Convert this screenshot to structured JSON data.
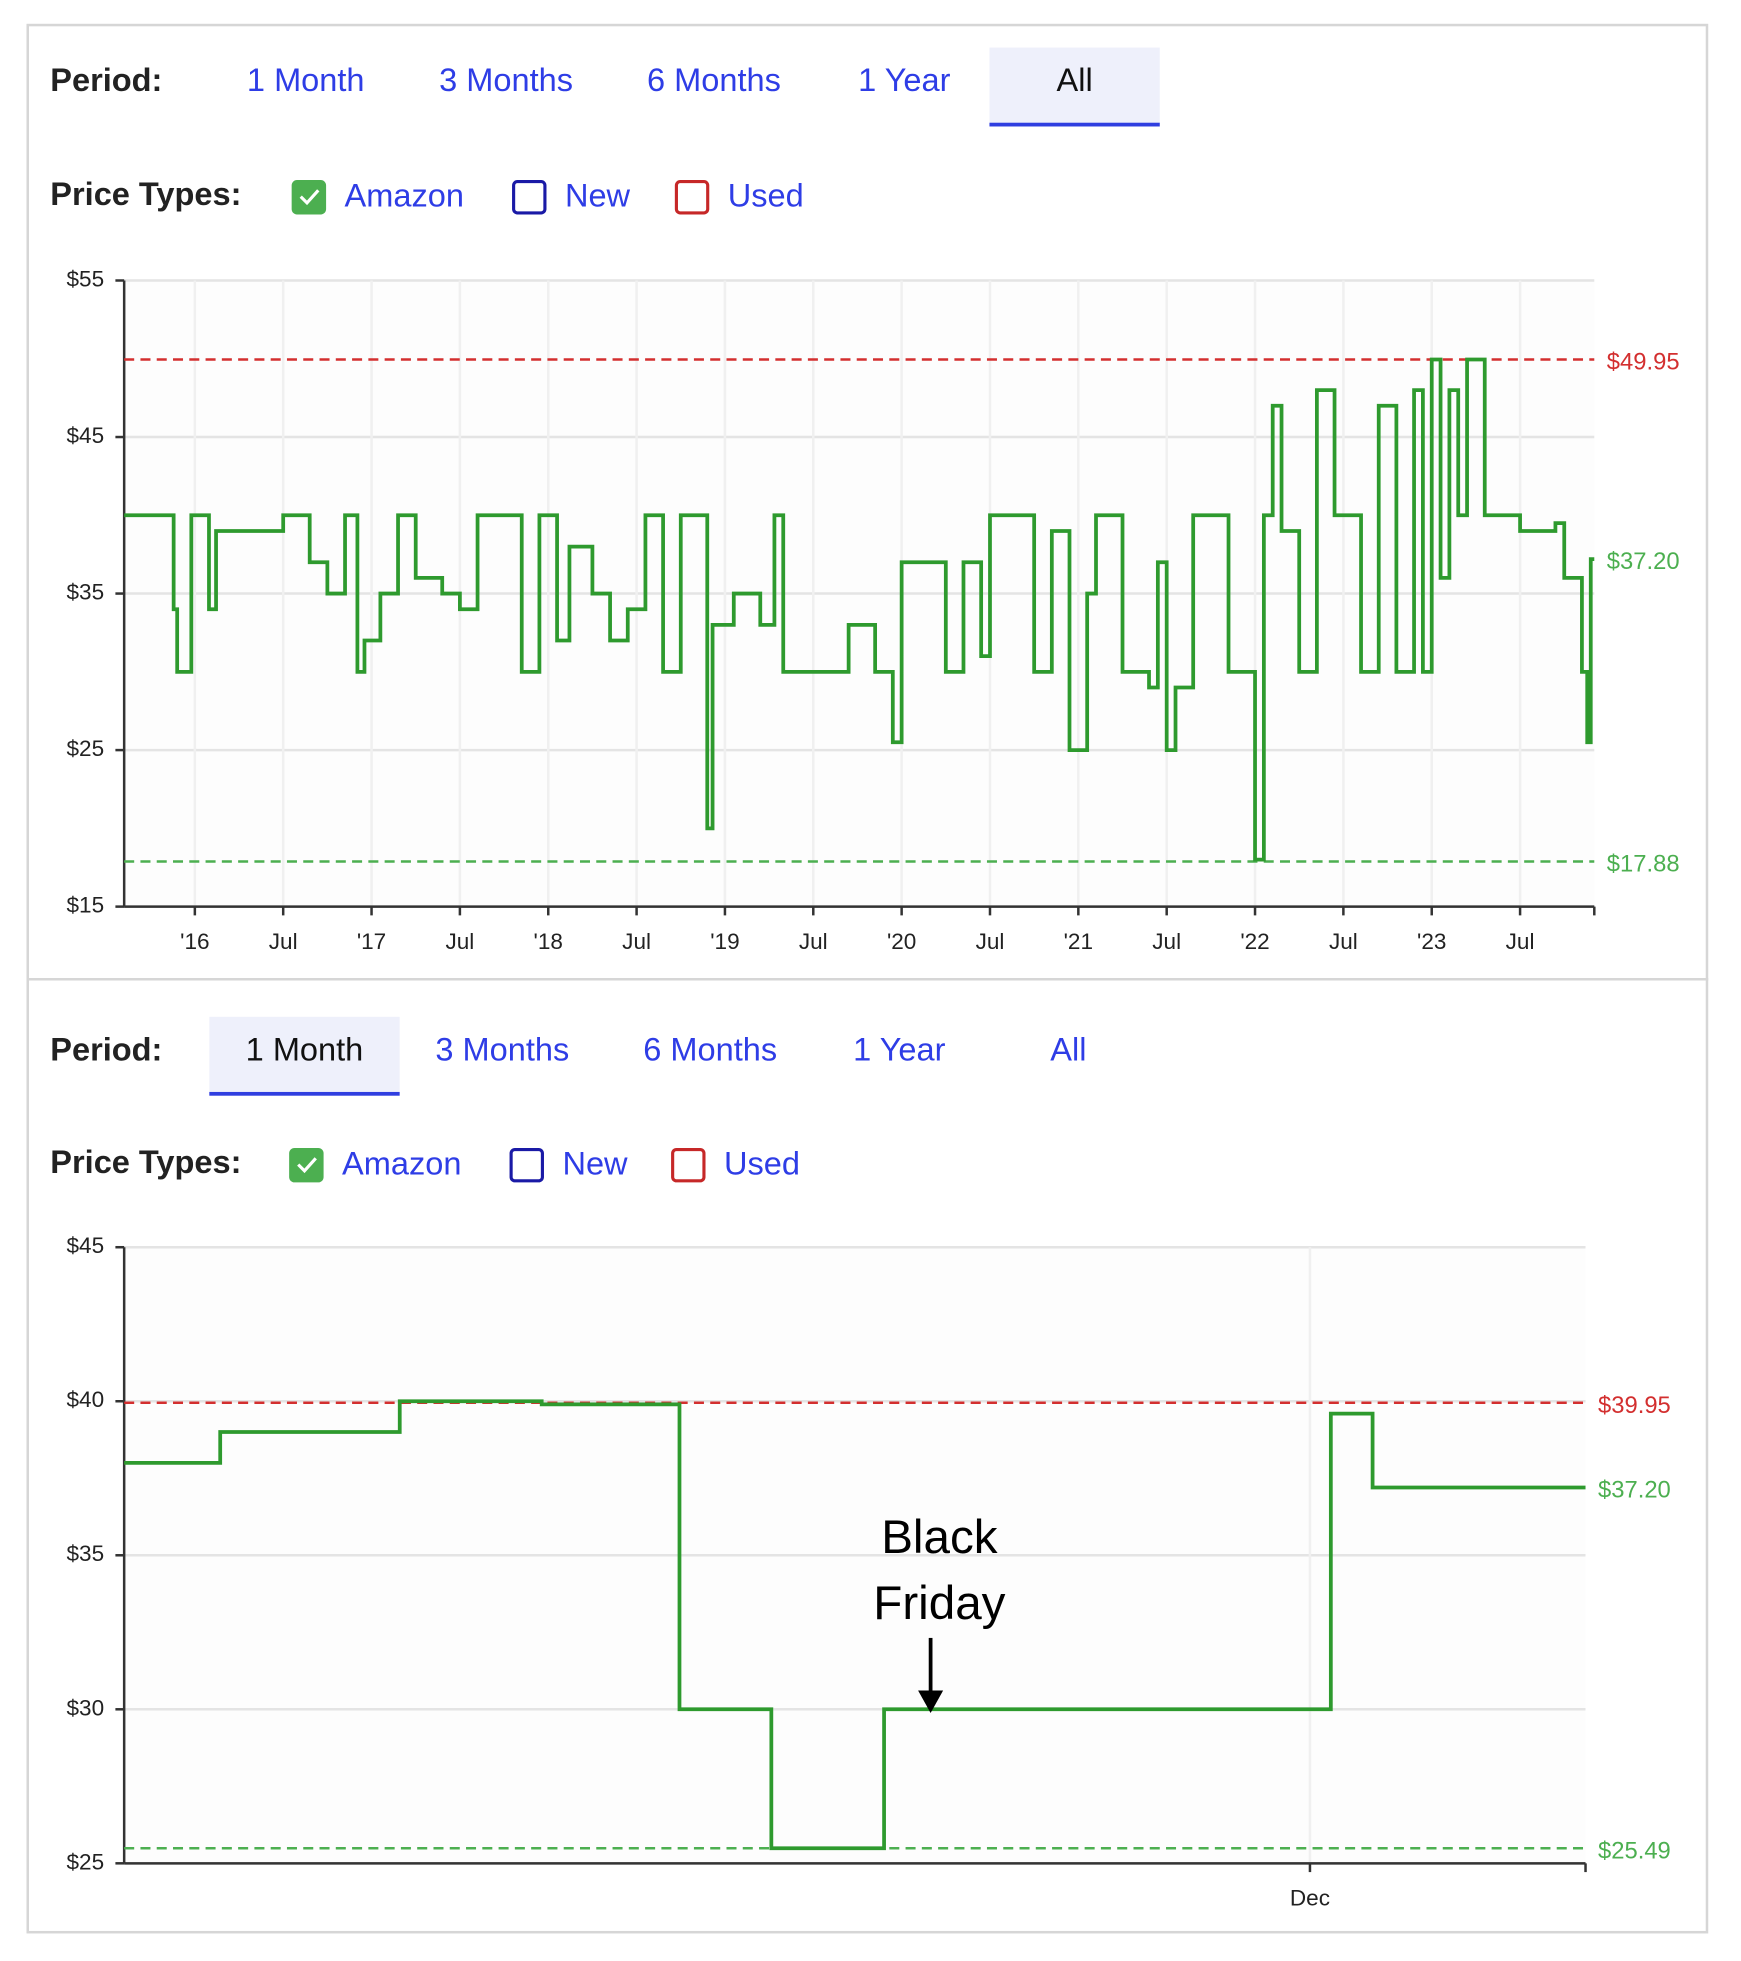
{
  "panels": [
    {
      "period_label": "Period:",
      "tabs": [
        "1 Month",
        "3 Months",
        "6 Months",
        "1 Year",
        "All"
      ],
      "active_tab": 4,
      "price_types_label": "Price Types:",
      "price_types": [
        {
          "label": "Amazon",
          "color": "#4caf50",
          "checked": true
        },
        {
          "label": "New",
          "color": "#1a1aa6",
          "checked": false
        },
        {
          "label": "Used",
          "color": "#c62828",
          "checked": false
        }
      ]
    },
    {
      "period_label": "Period:",
      "tabs": [
        "1 Month",
        "3 Months",
        "6 Months",
        "1 Year",
        "All"
      ],
      "active_tab": 0,
      "price_types_label": "Price Types:",
      "price_types": [
        {
          "label": "Amazon",
          "color": "#4caf50",
          "checked": true
        },
        {
          "label": "New",
          "color": "#1a1aa6",
          "checked": false
        },
        {
          "label": "Used",
          "color": "#c62828",
          "checked": false
        }
      ]
    }
  ],
  "chart_data": [
    {
      "type": "line",
      "step": true,
      "x": [
        2015.6,
        2015.88,
        2015.9,
        2015.98,
        2016.08,
        2016.12,
        2016.5,
        2016.65,
        2016.75,
        2016.85,
        2016.92,
        2016.96,
        2017.05,
        2017.15,
        2017.25,
        2017.4,
        2017.5,
        2017.6,
        2017.78,
        2017.85,
        2017.95,
        2018.05,
        2018.12,
        2018.25,
        2018.35,
        2018.45,
        2018.55,
        2018.65,
        2018.75,
        2018.9,
        2018.93,
        2019.05,
        2019.2,
        2019.28,
        2019.33,
        2019.7,
        2019.85,
        2019.95,
        2020.0,
        2020.25,
        2020.35,
        2020.45,
        2020.5,
        2020.75,
        2020.85,
        2020.95,
        2021.05,
        2021.1,
        2021.25,
        2021.4,
        2021.45,
        2021.5,
        2021.55,
        2021.65,
        2021.85,
        2022.0,
        2022.05,
        2022.1,
        2022.15,
        2022.25,
        2022.35,
        2022.45,
        2022.6,
        2022.7,
        2022.8,
        2022.9,
        2022.95,
        2023.0,
        2023.05,
        2023.1,
        2023.15,
        2023.2,
        2023.3,
        2023.5,
        2023.7,
        2023.75,
        2023.85,
        2023.88,
        2023.9
      ],
      "series": [
        {
          "color": "#2e9a2e",
          "values": [
            40,
            34,
            30,
            40,
            34,
            39,
            40,
            37,
            35,
            40,
            30,
            32,
            35,
            40,
            36,
            35,
            34,
            40,
            40,
            30,
            40,
            32,
            38,
            35,
            32,
            34,
            40,
            30,
            40,
            20,
            33,
            35,
            33,
            40,
            30,
            33,
            30,
            25.5,
            37,
            30,
            37,
            31,
            40,
            30,
            39,
            25,
            35,
            40,
            30,
            29,
            37,
            25,
            29,
            40,
            30,
            18,
            40,
            47,
            39,
            30,
            48,
            40,
            30,
            47,
            30,
            48,
            30,
            49.95,
            36,
            48,
            40,
            49.95,
            40,
            39,
            39.5,
            36,
            30,
            25.5,
            37.2
          ]
        }
      ],
      "xlim": [
        2015.6,
        2023.92
      ],
      "xticks": [
        {
          "value": 2016,
          "label": "'16"
        },
        {
          "value": 2016.5,
          "label": "Jul"
        },
        {
          "value": 2017,
          "label": "'17"
        },
        {
          "value": 2017.5,
          "label": "Jul"
        },
        {
          "value": 2018,
          "label": "'18"
        },
        {
          "value": 2018.5,
          "label": "Jul"
        },
        {
          "value": 2019,
          "label": "'19"
        },
        {
          "value": 2019.5,
          "label": "Jul"
        },
        {
          "value": 2020,
          "label": "'20"
        },
        {
          "value": 2020.5,
          "label": "Jul"
        },
        {
          "value": 2021,
          "label": "'21"
        },
        {
          "value": 2021.5,
          "label": "Jul"
        },
        {
          "value": 2022,
          "label": "'22"
        },
        {
          "value": 2022.5,
          "label": "Jul"
        },
        {
          "value": 2023,
          "label": "'23"
        },
        {
          "value": 2023.5,
          "label": "Jul"
        }
      ],
      "ylim": [
        15,
        55
      ],
      "yticks": [
        {
          "value": 15,
          "label": "$15"
        },
        {
          "value": 25,
          "label": "$25"
        },
        {
          "value": 35,
          "label": "$35"
        },
        {
          "value": 45,
          "label": "$45"
        },
        {
          "value": 55,
          "label": "$55"
        }
      ],
      "grid": true,
      "ref_lines": [
        {
          "value": 49.95,
          "label": "$49.95",
          "color": "#d32f2f",
          "line": true
        },
        {
          "value": 37.2,
          "label": "$37.20",
          "color": "#4caf50",
          "line": false
        },
        {
          "value": 17.88,
          "label": "$17.88",
          "color": "#4caf50",
          "line": true
        }
      ]
    },
    {
      "type": "line",
      "step": true,
      "x": [
        0,
        2.3,
        6.6,
        10.0,
        13.3,
        15.5,
        18.2,
        28.9,
        29.9
      ],
      "series": [
        {
          "color": "#2e9a2e",
          "values": [
            38,
            39,
            40,
            39.9,
            30,
            25.49,
            30,
            39.6,
            37.2
          ]
        }
      ],
      "xlim": [
        0,
        35
      ],
      "xticks": [
        {
          "value": 28.4,
          "label": "Dec"
        }
      ],
      "ylim": [
        25,
        45
      ],
      "yticks": [
        {
          "value": 25,
          "label": "$25"
        },
        {
          "value": 30,
          "label": "$30"
        },
        {
          "value": 35,
          "label": "$35"
        },
        {
          "value": 40,
          "label": "$40"
        },
        {
          "value": 45,
          "label": "$45"
        }
      ],
      "grid": true,
      "ref_lines": [
        {
          "value": 39.95,
          "label": "$39.95",
          "color": "#d32f2f",
          "line": true
        },
        {
          "value": 37.2,
          "label": "$37.20",
          "color": "#4caf50",
          "line": false
        },
        {
          "value": 25.49,
          "label": "$25.49",
          "color": "#4caf50",
          "line": true
        }
      ],
      "annotation": [
        "Black",
        "Friday"
      ]
    }
  ]
}
